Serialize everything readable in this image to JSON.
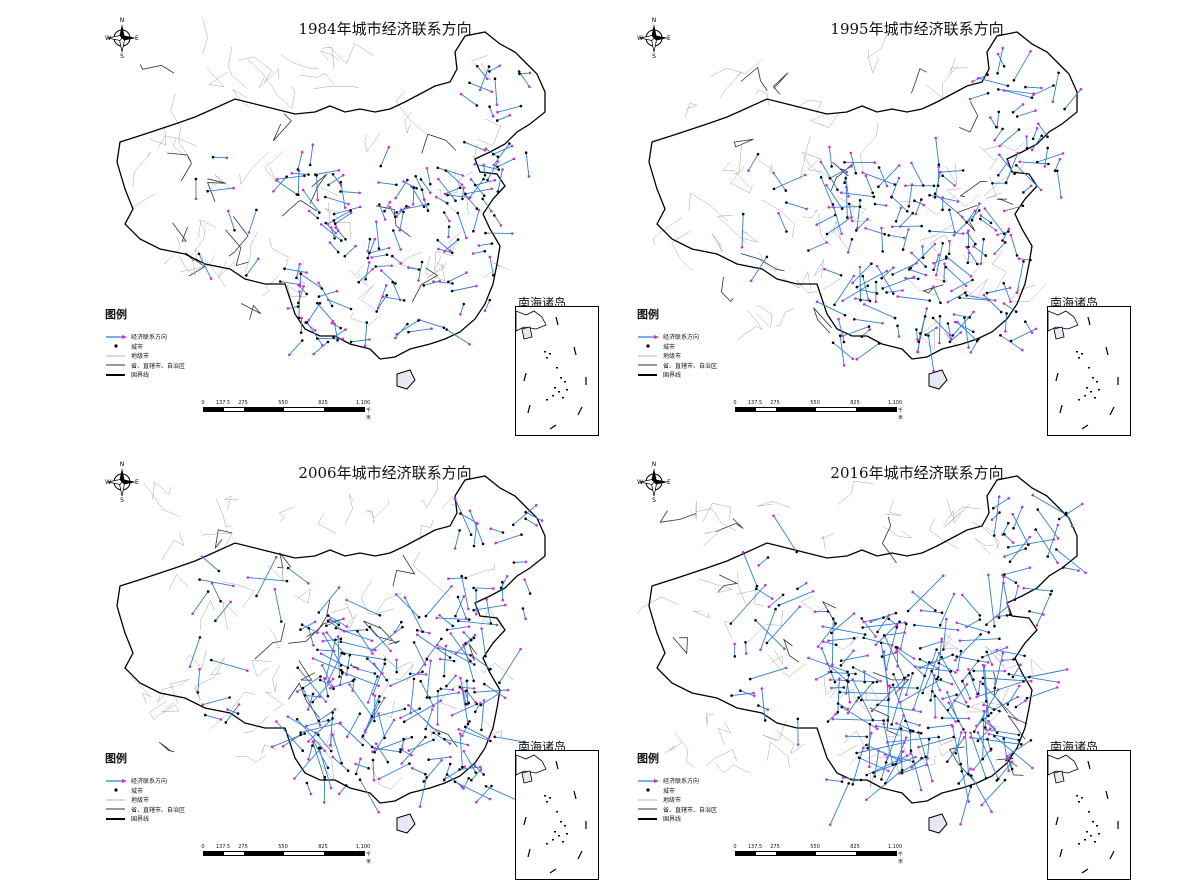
{
  "panels": [
    {
      "id": "p1984",
      "title": "1984年城市经济联系方向"
    },
    {
      "id": "p1995",
      "title": "1995年城市经济联系方向"
    },
    {
      "id": "p2006",
      "title": "2006年城市经济联系方向"
    },
    {
      "id": "p2016",
      "title": "2016年城市经济联系方向"
    }
  ],
  "compass": {
    "n": "N",
    "s": "S",
    "e": "E",
    "w": "W"
  },
  "legend": {
    "title": "图例",
    "items": [
      {
        "label": "经济联系方向",
        "symbol": "arrow"
      },
      {
        "label": "城市",
        "symbol": "dot"
      },
      {
        "label": "地级市",
        "symbol": "thin-line"
      },
      {
        "label": "省、直辖市、自治区",
        "symbol": "medium-line"
      },
      {
        "label": "国界线",
        "symbol": "thick-line"
      }
    ]
  },
  "scale": {
    "ticks": [
      "0",
      "137.5",
      "275",
      "550",
      "825",
      "1,100"
    ],
    "unit": "千米"
  },
  "inset_title": "南海诸岛",
  "colors": {
    "arrow": "#2f7fd0",
    "arrow_head": "#d22ad8",
    "city": "#000000",
    "boundary": "#000000",
    "admin": "#9a9a9a"
  }
}
